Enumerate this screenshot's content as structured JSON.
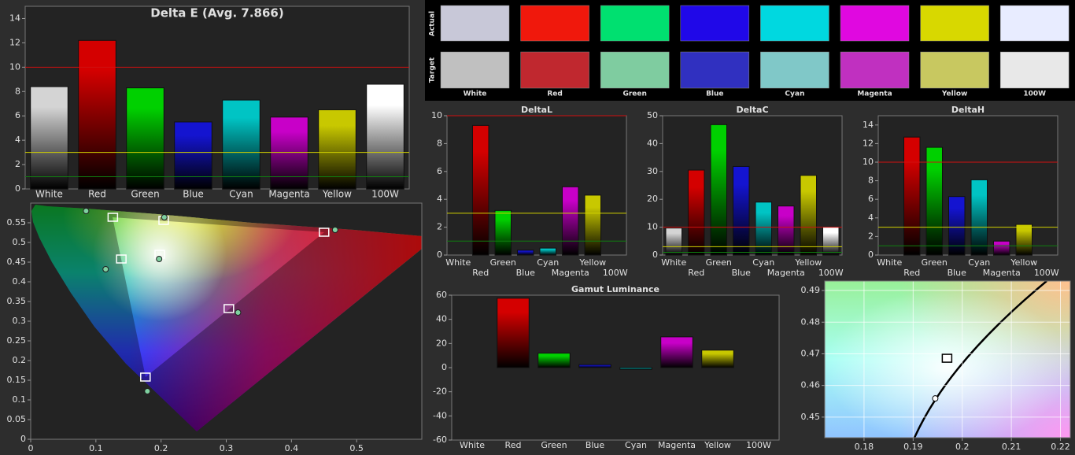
{
  "swatches": {
    "row_labels": [
      "Actual",
      "Target"
    ],
    "labels": [
      "White",
      "Red",
      "Green",
      "Blue",
      "Cyan",
      "Magenta",
      "Yellow",
      "100W"
    ],
    "actual": [
      "#c8c8d8",
      "#f0180c",
      "#00e070",
      "#2008e8",
      "#00d8e0",
      "#e008e0",
      "#d8d800",
      "#e8ecff"
    ],
    "target": [
      "#c0c0c0",
      "#c0282f",
      "#7fcca0",
      "#3030c0",
      "#80c8c8",
      "#c030c0",
      "#c8c860",
      "#e8e8e8"
    ]
  },
  "chart_data": [
    {
      "type": "bar",
      "title": "Delta E (Avg. 7.866)",
      "categories": [
        "White",
        "Red",
        "Green",
        "Blue",
        "Cyan",
        "Magenta",
        "Yellow",
        "100W"
      ],
      "values": [
        8.4,
        12.2,
        8.3,
        5.5,
        7.3,
        5.9,
        6.5,
        8.6
      ],
      "colors": [
        "#d4d4d4",
        "#d40000",
        "#00d000",
        "#1414d0",
        "#00c4c4",
        "#c800c8",
        "#c8c800",
        "#ffffff"
      ],
      "ylim": [
        0,
        15
      ],
      "yticks": [
        0,
        2,
        4,
        6,
        8,
        10,
        12,
        14
      ],
      "reference_lines": [
        {
          "value": 10,
          "color": "#d01010"
        },
        {
          "value": 3,
          "color": "#d0d000"
        },
        {
          "value": 1,
          "color": "#108010"
        }
      ]
    },
    {
      "type": "bar",
      "title": "DeltaL",
      "categories": [
        "White",
        "Red",
        "Green",
        "Blue",
        "Cyan",
        "Magenta",
        "Yellow",
        "100W"
      ],
      "values": [
        0,
        9.3,
        3.2,
        0.35,
        0.5,
        4.9,
        4.3,
        0
      ],
      "colors": [
        "#d4d4d4",
        "#d40000",
        "#00d000",
        "#1414d0",
        "#00c4c4",
        "#c800c8",
        "#c8c800",
        "#ffffff"
      ],
      "ylim": [
        0,
        10
      ],
      "yticks": [
        0,
        2,
        4,
        6,
        8,
        10
      ],
      "reference_lines": [
        {
          "value": 10,
          "color": "#d01010"
        },
        {
          "value": 3,
          "color": "#d0d000"
        },
        {
          "value": 1,
          "color": "#108010"
        }
      ]
    },
    {
      "type": "bar",
      "title": "DeltaC",
      "categories": [
        "White",
        "Red",
        "Green",
        "Blue",
        "Cyan",
        "Magenta",
        "Yellow",
        "100W"
      ],
      "values": [
        9.7,
        30.5,
        46.8,
        31.8,
        19,
        17.6,
        28.6,
        10
      ],
      "colors": [
        "#d4d4d4",
        "#d40000",
        "#00d000",
        "#1414d0",
        "#00c4c4",
        "#c800c8",
        "#c8c800",
        "#ffffff"
      ],
      "ylim": [
        0,
        50
      ],
      "yticks": [
        0,
        10,
        20,
        30,
        40,
        50
      ],
      "reference_lines": [
        {
          "value": 10,
          "color": "#d01010"
        },
        {
          "value": 3,
          "color": "#d0d000"
        },
        {
          "value": 1,
          "color": "#108010"
        }
      ]
    },
    {
      "type": "bar",
      "title": "DeltaH",
      "categories": [
        "White",
        "Red",
        "Green",
        "Blue",
        "Cyan",
        "Magenta",
        "Yellow",
        "100W"
      ],
      "values": [
        0,
        12.7,
        11.6,
        6.3,
        8.1,
        1.5,
        3.3,
        0
      ],
      "colors": [
        "#d4d4d4",
        "#d40000",
        "#00d000",
        "#1414d0",
        "#00c4c4",
        "#c800c8",
        "#c8c800",
        "#ffffff"
      ],
      "ylim": [
        0,
        15
      ],
      "yticks": [
        0,
        2,
        4,
        6,
        8,
        10,
        12,
        14
      ],
      "reference_lines": [
        {
          "value": 10,
          "color": "#d01010"
        },
        {
          "value": 3,
          "color": "#d0d000"
        },
        {
          "value": 1,
          "color": "#108010"
        }
      ]
    },
    {
      "type": "bar",
      "title": "Gamut Luminance",
      "categories": [
        "White",
        "Red",
        "Green",
        "Blue",
        "Cyan",
        "Magenta",
        "Yellow",
        "100W"
      ],
      "values": [
        0,
        57.5,
        12,
        2.5,
        -1.5,
        25.5,
        14.5,
        0
      ],
      "colors": [
        "#d4d4d4",
        "#d40000",
        "#00d000",
        "#1414d0",
        "#00c4c4",
        "#c800c8",
        "#c8c800",
        "#ffffff"
      ],
      "ylim": [
        -60,
        60
      ],
      "yticks": [
        -60,
        -40,
        -20,
        0,
        20,
        40,
        60
      ]
    },
    {
      "type": "scatter",
      "xlim": [
        0,
        0.6
      ],
      "ylim": [
        0,
        0.6
      ],
      "xticks": [
        0,
        0.1,
        0.2,
        0.3,
        0.4,
        0.5
      ],
      "yticks": [
        0,
        0.05,
        0.1,
        0.15,
        0.2,
        0.25,
        0.3,
        0.35,
        0.4,
        0.45,
        0.5,
        0.55
      ],
      "grid": false,
      "series": [
        {
          "marker": "square",
          "color": "#ffffff",
          "fill": "none",
          "x": [
            0.126,
            0.204,
            0.139,
            0.198,
            0.45,
            0.304,
            0.176
          ],
          "y": [
            0.564,
            0.556,
            0.458,
            0.47,
            0.526,
            0.332,
            0.158
          ]
        },
        {
          "marker": "circle",
          "color": "#222222",
          "fill": "#7fd0a0",
          "x": [
            0.085,
            0.205,
            0.115,
            0.197,
            0.467,
            0.318,
            0.179
          ],
          "y": [
            0.58,
            0.564,
            0.432,
            0.458,
            0.532,
            0.322,
            0.122
          ]
        }
      ]
    },
    {
      "type": "scatter",
      "xlim": [
        0.172,
        0.222
      ],
      "ylim": [
        0.4435,
        0.493
      ],
      "xticks": [
        0.18,
        0.19,
        0.2,
        0.21,
        0.22
      ],
      "yticks": [
        0.45,
        0.46,
        0.47,
        0.48,
        0.49
      ],
      "grid": true,
      "series": [
        {
          "marker": "square",
          "color": "#000000",
          "fill": "#ffffff",
          "x": [
            0.1969
          ],
          "y": [
            0.4686
          ]
        },
        {
          "marker": "circle",
          "color": "#000000",
          "fill": "#ffffff",
          "x": [
            0.1945
          ],
          "y": [
            0.4559
          ]
        }
      ]
    }
  ]
}
